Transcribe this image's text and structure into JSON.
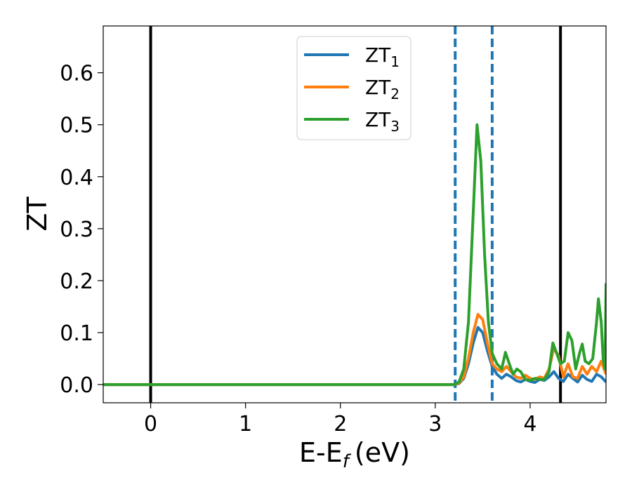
{
  "chart_data": {
    "type": "line",
    "xlabel": "E-E",
    "xlabel_subscript": "f",
    "xlabel_unit": "(eV)",
    "ylabel": "ZT",
    "xlim": [
      -0.5,
      4.8
    ],
    "ylim": [
      -0.035,
      0.69
    ],
    "x_ticks": [
      0,
      1,
      2,
      3,
      4
    ],
    "x_tick_labels": [
      "0",
      "1",
      "2",
      "3",
      "4"
    ],
    "y_ticks": [
      0.0,
      0.1,
      0.2,
      0.3,
      0.4,
      0.5,
      0.6
    ],
    "y_tick_labels": [
      "0.0",
      "0.1",
      "0.2",
      "0.3",
      "0.4",
      "0.5",
      "0.6"
    ],
    "grid": false,
    "legend_position": "top-center",
    "reference_lines": [
      {
        "x": 0.0,
        "style": "solid",
        "color": "#000000"
      },
      {
        "x": 4.32,
        "style": "solid",
        "color": "#000000"
      },
      {
        "x": 3.21,
        "style": "dashed",
        "color": "#1f77b4"
      },
      {
        "x": 3.6,
        "style": "dashed",
        "color": "#1f77b4"
      }
    ],
    "series": [
      {
        "name": "ZT",
        "subscript": "1",
        "color": "#1f77b4",
        "points": [
          [
            -0.5,
            0
          ],
          [
            3.2,
            0
          ],
          [
            3.25,
            0.002
          ],
          [
            3.3,
            0.012
          ],
          [
            3.35,
            0.04
          ],
          [
            3.4,
            0.08
          ],
          [
            3.45,
            0.11
          ],
          [
            3.5,
            0.1
          ],
          [
            3.55,
            0.065
          ],
          [
            3.6,
            0.035
          ],
          [
            3.65,
            0.02
          ],
          [
            3.7,
            0.012
          ],
          [
            3.75,
            0.02
          ],
          [
            3.8,
            0.015
          ],
          [
            3.85,
            0.008
          ],
          [
            3.9,
            0.005
          ],
          [
            3.95,
            0.01
          ],
          [
            4.0,
            0.006
          ],
          [
            4.05,
            0.004
          ],
          [
            4.1,
            0.01
          ],
          [
            4.15,
            0.008
          ],
          [
            4.2,
            0.015
          ],
          [
            4.25,
            0.025
          ],
          [
            4.3,
            0.012
          ],
          [
            4.35,
            0.006
          ],
          [
            4.4,
            0.02
          ],
          [
            4.45,
            0.012
          ],
          [
            4.5,
            0.005
          ],
          [
            4.55,
            0.018
          ],
          [
            4.6,
            0.01
          ],
          [
            4.65,
            0.006
          ],
          [
            4.7,
            0.02
          ],
          [
            4.75,
            0.015
          ],
          [
            4.8,
            0.005
          ]
        ]
      },
      {
        "name": "ZT",
        "subscript": "2",
        "color": "#ff7f0e",
        "points": [
          [
            -0.5,
            0
          ],
          [
            3.2,
            0
          ],
          [
            3.25,
            0.003
          ],
          [
            3.3,
            0.015
          ],
          [
            3.35,
            0.05
          ],
          [
            3.4,
            0.1
          ],
          [
            3.45,
            0.135
          ],
          [
            3.5,
            0.125
          ],
          [
            3.55,
            0.08
          ],
          [
            3.6,
            0.04
          ],
          [
            3.65,
            0.03
          ],
          [
            3.7,
            0.025
          ],
          [
            3.75,
            0.035
          ],
          [
            3.8,
            0.025
          ],
          [
            3.85,
            0.015
          ],
          [
            3.9,
            0.012
          ],
          [
            3.95,
            0.018
          ],
          [
            4.0,
            0.012
          ],
          [
            4.05,
            0.01
          ],
          [
            4.1,
            0.015
          ],
          [
            4.15,
            0.012
          ],
          [
            4.2,
            0.03
          ],
          [
            4.25,
            0.07
          ],
          [
            4.3,
            0.055
          ],
          [
            4.35,
            0.015
          ],
          [
            4.4,
            0.04
          ],
          [
            4.45,
            0.015
          ],
          [
            4.5,
            0.012
          ],
          [
            4.55,
            0.035
          ],
          [
            4.6,
            0.02
          ],
          [
            4.65,
            0.035
          ],
          [
            4.7,
            0.025
          ],
          [
            4.75,
            0.045
          ],
          [
            4.8,
            0.02
          ]
        ]
      },
      {
        "name": "ZT",
        "subscript": "3",
        "color": "#2ca02c",
        "points": [
          [
            -0.5,
            0
          ],
          [
            3.2,
            0
          ],
          [
            3.25,
            0.005
          ],
          [
            3.3,
            0.03
          ],
          [
            3.35,
            0.12
          ],
          [
            3.4,
            0.33
          ],
          [
            3.44,
            0.5
          ],
          [
            3.48,
            0.43
          ],
          [
            3.52,
            0.25
          ],
          [
            3.56,
            0.12
          ],
          [
            3.6,
            0.06
          ],
          [
            3.65,
            0.04
          ],
          [
            3.7,
            0.03
          ],
          [
            3.74,
            0.062
          ],
          [
            3.78,
            0.04
          ],
          [
            3.82,
            0.02
          ],
          [
            3.86,
            0.03
          ],
          [
            3.9,
            0.025
          ],
          [
            3.95,
            0.01
          ],
          [
            4.0,
            0.008
          ],
          [
            4.05,
            0.012
          ],
          [
            4.1,
            0.01
          ],
          [
            4.15,
            0.01
          ],
          [
            4.2,
            0.025
          ],
          [
            4.24,
            0.08
          ],
          [
            4.28,
            0.06
          ],
          [
            4.32,
            0.04
          ],
          [
            4.36,
            0.045
          ],
          [
            4.4,
            0.1
          ],
          [
            4.44,
            0.085
          ],
          [
            4.48,
            0.03
          ],
          [
            4.52,
            0.06
          ],
          [
            4.55,
            0.078
          ],
          [
            4.58,
            0.045
          ],
          [
            4.62,
            0.04
          ],
          [
            4.66,
            0.05
          ],
          [
            4.7,
            0.12
          ],
          [
            4.72,
            0.165
          ],
          [
            4.75,
            0.12
          ],
          [
            4.77,
            0.05
          ],
          [
            4.79,
            0.03
          ],
          [
            4.8,
            0.195
          ]
        ]
      }
    ]
  }
}
